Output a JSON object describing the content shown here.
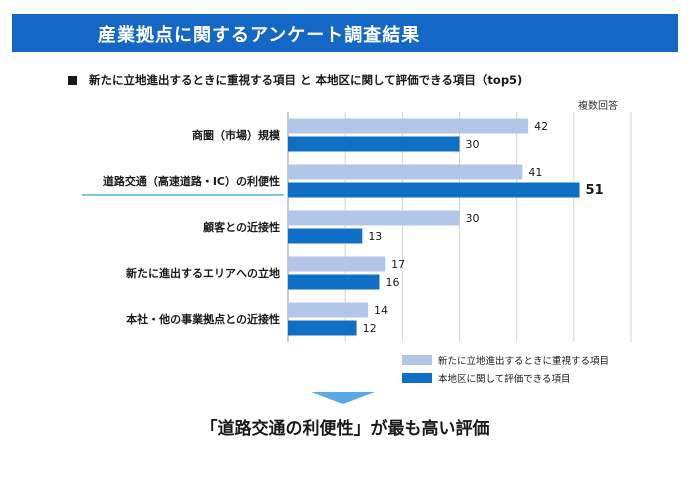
{
  "header": {
    "title": "産業拠点に関するアンケート調査結果"
  },
  "subtitle": "新たに立地進出するときに重視する項目 と 本地区に関して評価できる項目（top5)",
  "note": "複数回答",
  "conclusion": "「道路交通の利便性」が最も高い評価",
  "chart_data": {
    "type": "bar",
    "orientation": "horizontal",
    "categories": [
      "商圏（市場）規模",
      "道路交通（高速道路・IC）の利便性",
      "顧客との近接性",
      "新たに進出するエリアへの立地",
      "本社・他の事業拠点との近接性"
    ],
    "series": [
      {
        "name": "新たに立地進出するときに重視する項目",
        "color": "#b4c6e7",
        "values": [
          42,
          41,
          30,
          17,
          14
        ]
      },
      {
        "name": "本地区に関して評価できる項目",
        "color": "#0e6fc4",
        "values": [
          30,
          51,
          13,
          16,
          12
        ]
      }
    ],
    "xlim": [
      0,
      60
    ],
    "grid": true,
    "legend_position": "bottom-right",
    "highlight_category_index": 1,
    "highlight_value_bold": {
      "series": 1,
      "category": 1
    }
  }
}
